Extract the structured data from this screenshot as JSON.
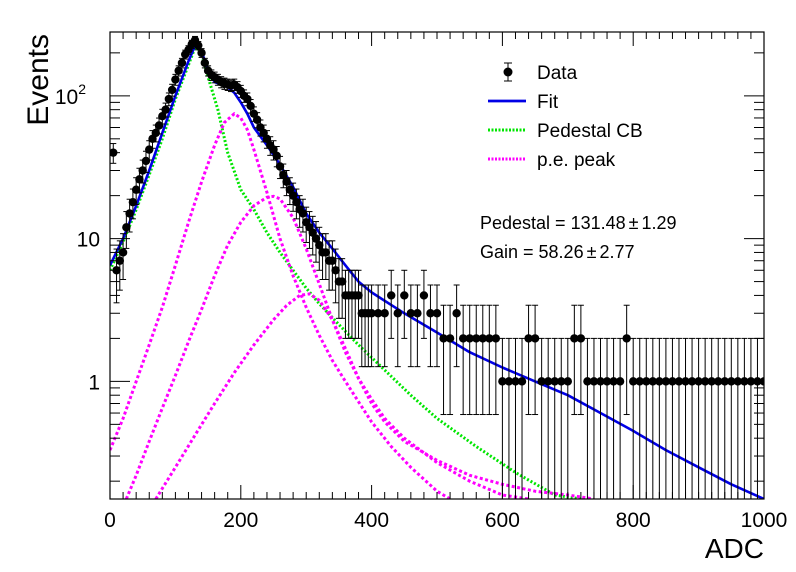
{
  "chart_data": {
    "type": "scatter",
    "xlabel": "ADC",
    "ylabel": "Events",
    "xlim": [
      0,
      1000
    ],
    "ylim": [
      0.15,
      280
    ],
    "yscale": "log",
    "grid": false,
    "legend_position": "top-right",
    "x_ticks": [
      {
        "value": 0,
        "label": "0"
      },
      {
        "value": 200,
        "label": "200"
      },
      {
        "value": 400,
        "label": "400"
      },
      {
        "value": 600,
        "label": "600"
      },
      {
        "value": 800,
        "label": "800"
      },
      {
        "value": 1000,
        "label": "1000"
      }
    ],
    "y_ticks": [
      {
        "value": 1,
        "label": "1"
      },
      {
        "value": 10,
        "label": "10"
      },
      {
        "value": 100,
        "label": "10",
        "sup": "2"
      }
    ],
    "legend": [
      {
        "label": "Data",
        "style": "marker",
        "color": "#000000"
      },
      {
        "label": "Fit",
        "style": "solid",
        "color": "#0000e6"
      },
      {
        "label": "Pedestal CB",
        "style": "dotted",
        "color": "#00e600"
      },
      {
        "label": "p.e. peak",
        "style": "dotted",
        "color": "#ff00ff"
      }
    ],
    "annotations": [
      {
        "prefix": "Pedestal = ",
        "value": "131.48",
        "pm": "±",
        "error": "1.29"
      },
      {
        "prefix": "Gain = ",
        "value": "58.26",
        "pm": "±",
        "error": "2.77"
      }
    ],
    "series": [
      {
        "name": "Data",
        "color": "#000000",
        "x": [
          5,
          10,
          15,
          20,
          25,
          30,
          35,
          40,
          45,
          50,
          55,
          60,
          65,
          70,
          75,
          80,
          85,
          90,
          95,
          100,
          105,
          110,
          115,
          120,
          125,
          130,
          135,
          140,
          145,
          150,
          155,
          160,
          165,
          170,
          175,
          180,
          185,
          190,
          195,
          200,
          205,
          210,
          215,
          220,
          225,
          230,
          235,
          240,
          245,
          250,
          255,
          260,
          265,
          270,
          275,
          280,
          285,
          290,
          295,
          300,
          305,
          310,
          315,
          320,
          325,
          330,
          335,
          340,
          345,
          350,
          355,
          360,
          365,
          370,
          375,
          380,
          385,
          390,
          395,
          400,
          410,
          420,
          430,
          440,
          450,
          460,
          470,
          480,
          490,
          500,
          510,
          520,
          530,
          540,
          550,
          560,
          570,
          580,
          590,
          600,
          610,
          620,
          630,
          640,
          650,
          660,
          670,
          680,
          690,
          700,
          710,
          720,
          730,
          740,
          750,
          760,
          770,
          780,
          790,
          800,
          810,
          820,
          830,
          840,
          850,
          860,
          870,
          880,
          890,
          900,
          910,
          920,
          930,
          940,
          950,
          960,
          970,
          980,
          990,
          1000
        ],
        "y": [
          40,
          6,
          7,
          8,
          12,
          15,
          18,
          22,
          26,
          30,
          35,
          42,
          50,
          55,
          62,
          72,
          80,
          95,
          110,
          130,
          150,
          170,
          195,
          210,
          230,
          245,
          225,
          200,
          170,
          150,
          140,
          135,
          130,
          125,
          122,
          120,
          118,
          120,
          115,
          108,
          100,
          95,
          85,
          75,
          68,
          60,
          55,
          50,
          45,
          42,
          38,
          32,
          28,
          25,
          22,
          20,
          18,
          16,
          15,
          13,
          12,
          11,
          10,
          9,
          8,
          8,
          7,
          7,
          6,
          5,
          5,
          4,
          4,
          4,
          4,
          4,
          3,
          3,
          3,
          3,
          3,
          3,
          4,
          3,
          4,
          3,
          3,
          4,
          3,
          3,
          2,
          2,
          3,
          2,
          2,
          2,
          2,
          2,
          2,
          1,
          1,
          1,
          1,
          2,
          2,
          1,
          1,
          1,
          1,
          1,
          2,
          2,
          1,
          1,
          1,
          1,
          1,
          1,
          2,
          1,
          1,
          1,
          1,
          1,
          1,
          1,
          1,
          1,
          1,
          1,
          1,
          1,
          1,
          1,
          1,
          1,
          1,
          1,
          1,
          1
        ]
      },
      {
        "name": "Fit",
        "color": "#0000e6",
        "x": [
          0,
          20,
          40,
          60,
          80,
          100,
          120,
          131,
          140,
          150,
          160,
          170,
          180,
          190,
          200,
          210,
          220,
          240,
          260,
          280,
          300,
          320,
          340,
          360,
          380,
          400,
          450,
          500,
          550,
          600,
          650,
          700,
          750,
          800,
          850,
          900,
          950,
          1000
        ],
        "y": [
          6.5,
          10,
          17,
          30,
          55,
          100,
          175,
          230,
          205,
          150,
          125,
          120,
          115,
          105,
          90,
          75,
          60,
          45,
          33,
          23,
          15,
          11,
          8.5,
          6.5,
          5,
          4.2,
          3,
          2.2,
          1.6,
          1.25,
          1.0,
          0.8,
          0.6,
          0.45,
          0.33,
          0.25,
          0.19,
          0.15
        ]
      },
      {
        "name": "Pedestal CB",
        "color": "#00e600",
        "x": [
          0,
          20,
          40,
          60,
          80,
          100,
          120,
          131,
          140,
          150,
          165,
          180,
          200,
          220,
          240,
          260,
          280,
          300,
          320,
          350,
          380,
          420,
          460,
          500,
          560,
          620,
          680,
          720
        ],
        "y": [
          6,
          9.5,
          16,
          28,
          50,
          95,
          165,
          225,
          195,
          135,
          80,
          40,
          22,
          16,
          11,
          8,
          6,
          4.5,
          3.5,
          2.5,
          1.8,
          1.2,
          0.8,
          0.55,
          0.35,
          0.23,
          0.16,
          0.15
        ]
      },
      {
        "name": "p.e. peak 1",
        "color": "#ff00ff",
        "x": [
          0,
          20,
          40,
          60,
          80,
          100,
          120,
          140,
          160,
          175,
          190,
          200,
          210,
          220,
          240,
          260,
          280,
          300,
          320,
          340,
          360,
          380,
          400,
          430,
          460,
          500,
          520
        ],
        "y": [
          0.33,
          0.55,
          1.0,
          1.8,
          3.3,
          6.5,
          13,
          25,
          45,
          65,
          75,
          70,
          58,
          42,
          21,
          10,
          5.5,
          3.3,
          2.1,
          1.4,
          1.0,
          0.72,
          0.52,
          0.35,
          0.25,
          0.17,
          0.15
        ]
      },
      {
        "name": "p.e. peak 2",
        "color": "#ff00ff",
        "x": [
          25,
          40,
          60,
          80,
          100,
          120,
          140,
          160,
          180,
          200,
          220,
          240,
          250,
          260,
          280,
          300,
          320,
          340,
          360,
          380,
          400,
          420,
          450,
          500,
          550,
          600,
          640
        ],
        "y": [
          0.15,
          0.22,
          0.38,
          0.65,
          1.1,
          1.9,
          3.2,
          5.5,
          9,
          13,
          17,
          19.5,
          19.8,
          19,
          14,
          8.5,
          4.8,
          2.7,
          1.6,
          1.05,
          0.75,
          0.55,
          0.4,
          0.27,
          0.2,
          0.16,
          0.15
        ]
      },
      {
        "name": "p.e. peak 3",
        "color": "#ff00ff",
        "x": [
          70,
          100,
          130,
          160,
          190,
          220,
          250,
          270,
          290,
          305,
          320,
          340,
          360,
          380,
          400,
          420,
          450,
          500,
          550,
          600,
          650,
          700,
          740
        ],
        "y": [
          0.15,
          0.25,
          0.42,
          0.7,
          1.15,
          1.8,
          2.7,
          3.4,
          4.0,
          4.1,
          3.7,
          2.7,
          1.7,
          1.05,
          0.7,
          0.52,
          0.38,
          0.28,
          0.22,
          0.19,
          0.17,
          0.16,
          0.15
        ]
      }
    ]
  }
}
